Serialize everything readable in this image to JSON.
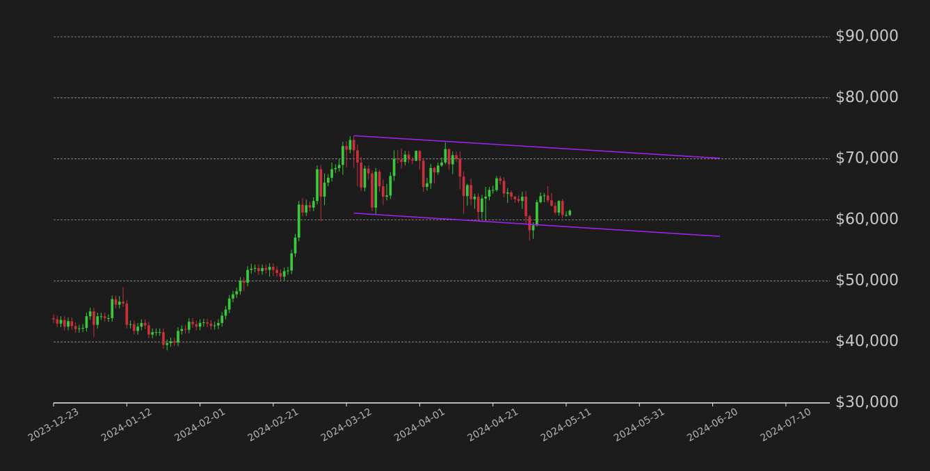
{
  "chart_data": {
    "type": "candlestick",
    "x": [
      "2023-12-23",
      "2023-12-24",
      "2023-12-25",
      "2023-12-26",
      "2023-12-27",
      "2023-12-28",
      "2023-12-29",
      "2023-12-30",
      "2023-12-31",
      "2024-01-01",
      "2024-01-02",
      "2024-01-03",
      "2024-01-04",
      "2024-01-05",
      "2024-01-06",
      "2024-01-07",
      "2024-01-08",
      "2024-01-09",
      "2024-01-10",
      "2024-01-11",
      "2024-01-12",
      "2024-01-13",
      "2024-01-14",
      "2024-01-15",
      "2024-01-16",
      "2024-01-17",
      "2024-01-18",
      "2024-01-19",
      "2024-01-20",
      "2024-01-21",
      "2024-01-22",
      "2024-01-23",
      "2024-01-24",
      "2024-01-25",
      "2024-01-26",
      "2024-01-27",
      "2024-01-28",
      "2024-01-29",
      "2024-01-30",
      "2024-01-31",
      "2024-02-01",
      "2024-02-02",
      "2024-02-03",
      "2024-02-04",
      "2024-02-05",
      "2024-02-06",
      "2024-02-07",
      "2024-02-08",
      "2024-02-09",
      "2024-02-10",
      "2024-02-11",
      "2024-02-12",
      "2024-02-13",
      "2024-02-14",
      "2024-02-15",
      "2024-02-16",
      "2024-02-17",
      "2024-02-18",
      "2024-02-19",
      "2024-02-20",
      "2024-02-21",
      "2024-02-22",
      "2024-02-23",
      "2024-02-24",
      "2024-02-25",
      "2024-02-26",
      "2024-02-27",
      "2024-02-28",
      "2024-02-29",
      "2024-03-01",
      "2024-03-02",
      "2024-03-03",
      "2024-03-04",
      "2024-03-05",
      "2024-03-06",
      "2024-03-07",
      "2024-03-08",
      "2024-03-09",
      "2024-03-10",
      "2024-03-11",
      "2024-03-12",
      "2024-03-13",
      "2024-03-14",
      "2024-03-15",
      "2024-03-16",
      "2024-03-17",
      "2024-03-18",
      "2024-03-19",
      "2024-03-20",
      "2024-03-21",
      "2024-03-22",
      "2024-03-23",
      "2024-03-24",
      "2024-03-25",
      "2024-03-26",
      "2024-03-27",
      "2024-03-28",
      "2024-03-29",
      "2024-03-30",
      "2024-03-31",
      "2024-04-01",
      "2024-04-02",
      "2024-04-03",
      "2024-04-04",
      "2024-04-05",
      "2024-04-06",
      "2024-04-07",
      "2024-04-08",
      "2024-04-09",
      "2024-04-10",
      "2024-04-11",
      "2024-04-12",
      "2024-04-13",
      "2024-04-14",
      "2024-04-15",
      "2024-04-16",
      "2024-04-17",
      "2024-04-18",
      "2024-04-19",
      "2024-04-20",
      "2024-04-21",
      "2024-04-22",
      "2024-04-23",
      "2024-04-24",
      "2024-04-25",
      "2024-04-26",
      "2024-04-27",
      "2024-04-28",
      "2024-04-29",
      "2024-04-30",
      "2024-05-01",
      "2024-05-02",
      "2024-05-03",
      "2024-05-04",
      "2024-05-05",
      "2024-05-06",
      "2024-05-07",
      "2024-05-08",
      "2024-05-09",
      "2024-05-10",
      "2024-05-11",
      "2024-05-12"
    ],
    "open": [
      43900,
      43700,
      43000,
      43600,
      42500,
      43400,
      42600,
      42100,
      42200,
      42300,
      44200,
      45000,
      42800,
      44200,
      44200,
      43900,
      43900,
      47000,
      46100,
      46600,
      46300,
      42800,
      42900,
      41800,
      42500,
      43100,
      42700,
      41200,
      41600,
      41600,
      41600,
      39500,
      39800,
      40100,
      39900,
      41800,
      42100,
      42000,
      43300,
      42900,
      42500,
      43100,
      43200,
      43000,
      42600,
      42700,
      43100,
      44300,
      45300,
      47100,
      47800,
      48300,
      50000,
      49700,
      51800,
      52000,
      52100,
      51600,
      52100,
      51800,
      52300,
      51800,
      51300,
      50700,
      51600,
      51700,
      54500,
      57100,
      62500,
      61200,
      62400,
      62000,
      63100,
      68300,
      63800,
      66100,
      66900,
      68300,
      68500,
      69000,
      72100,
      71500,
      73100,
      71400,
      69400,
      65300,
      68400,
      67600,
      62000,
      67900,
      65500,
      63800,
      64000,
      67200,
      70000,
      69900,
      69500,
      70700,
      69900,
      69700,
      71300,
      69700,
      65400,
      66000,
      68500,
      67800,
      68900,
      69400,
      71600,
      69100,
      70600,
      70000,
      67100,
      63900,
      65700,
      63400,
      63800,
      61300,
      63500,
      63800,
      64900,
      64900,
      66800,
      66400,
      64300,
      64500,
      63800,
      63400,
      63100,
      63800,
      60600,
      58300,
      59100,
      62900,
      63900,
      64000,
      63200,
      62300,
      61200,
      63100,
      60800,
      60800
    ],
    "high": [
      44500,
      44300,
      44200,
      44200,
      44000,
      44000,
      43200,
      42800,
      42900,
      44800,
      45600,
      45600,
      44800,
      44800,
      44800,
      44500,
      47600,
      47600,
      47500,
      49000,
      46900,
      43500,
      43500,
      43100,
      43700,
      43700,
      43300,
      42200,
      42200,
      42200,
      42200,
      40400,
      40700,
      40700,
      42400,
      42700,
      42700,
      43900,
      43900,
      43500,
      43700,
      43800,
      43800,
      43600,
      43300,
      43700,
      44900,
      45900,
      47700,
      48400,
      48900,
      50600,
      50600,
      52400,
      52800,
      52700,
      52700,
      52700,
      52700,
      52900,
      52900,
      52400,
      51900,
      52200,
      52300,
      55100,
      57700,
      63100,
      63600,
      63300,
      63000,
      63700,
      68900,
      69000,
      67600,
      67500,
      69400,
      69100,
      70000,
      72800,
      72900,
      73700,
      73800,
      72400,
      70300,
      68900,
      68900,
      68100,
      68500,
      68200,
      66600,
      65900,
      67800,
      71400,
      71400,
      71700,
      71300,
      71300,
      70300,
      71400,
      71400,
      70000,
      66900,
      69200,
      68700,
      69400,
      70200,
      72700,
      71700,
      71200,
      71200,
      71200,
      67900,
      65900,
      66800,
      64300,
      64400,
      64100,
      65400,
      65400,
      65600,
      67200,
      67200,
      67000,
      65200,
      64800,
      63900,
      64000,
      64600,
      64700,
      60800,
      59600,
      63300,
      64500,
      64400,
      65500,
      64400,
      62900,
      63200,
      63400,
      61400,
      61700
    ],
    "low": [
      43100,
      42400,
      42400,
      41900,
      41900,
      42000,
      41500,
      41500,
      41600,
      41700,
      43600,
      40800,
      42200,
      43600,
      43300,
      43300,
      43300,
      45500,
      45500,
      45700,
      42200,
      42200,
      41200,
      41200,
      41900,
      42100,
      40600,
      40600,
      41000,
      41000,
      38900,
      38600,
      39200,
      39300,
      39300,
      41200,
      41400,
      41400,
      42300,
      41900,
      41900,
      42500,
      42400,
      42000,
      42000,
      42100,
      42500,
      43700,
      44700,
      46500,
      47200,
      47700,
      48300,
      49100,
      51200,
      51400,
      51000,
      51000,
      51200,
      50700,
      50800,
      50700,
      50100,
      50100,
      51000,
      51100,
      53900,
      56500,
      60600,
      60600,
      61400,
      61400,
      62500,
      59800,
      62400,
      65500,
      66300,
      67700,
      67900,
      67400,
      68600,
      70900,
      68500,
      65500,
      64700,
      64700,
      66600,
      61400,
      60800,
      64600,
      62400,
      63200,
      63400,
      66400,
      69300,
      68400,
      68900,
      69300,
      69100,
      69600,
      68200,
      64600,
      64800,
      65100,
      66000,
      67400,
      68700,
      69100,
      68200,
      67500,
      69500,
      65000,
      61000,
      62300,
      62400,
      61800,
      59900,
      60200,
      59700,
      63200,
      64300,
      64600,
      65800,
      63700,
      62800,
      63300,
      62800,
      62800,
      61800,
      59200,
      56600,
      56900,
      58900,
      62700,
      62900,
      62800,
      62200,
      60900,
      60700,
      60300,
      60500,
      60600
    ],
    "close": [
      43700,
      43000,
      43600,
      42500,
      43400,
      42600,
      42100,
      42200,
      42300,
      44200,
      45000,
      42800,
      44200,
      44200,
      43900,
      43900,
      47000,
      46100,
      46600,
      46300,
      42800,
      42900,
      41800,
      42500,
      43100,
      42700,
      41200,
      41600,
      41600,
      41600,
      39500,
      39800,
      40100,
      39900,
      41800,
      42100,
      42000,
      43300,
      42900,
      42500,
      43100,
      43200,
      43000,
      42600,
      42700,
      43100,
      44300,
      45300,
      47100,
      47800,
      48300,
      50000,
      49700,
      51800,
      52000,
      52100,
      51600,
      52100,
      51800,
      52300,
      51800,
      51300,
      50700,
      51600,
      51700,
      54500,
      57100,
      62500,
      61200,
      62400,
      62000,
      63100,
      68300,
      63800,
      66100,
      66900,
      68300,
      68500,
      69000,
      72100,
      71500,
      73100,
      71400,
      69400,
      65300,
      68400,
      67600,
      62000,
      67900,
      65500,
      63800,
      64000,
      67200,
      70000,
      69900,
      69500,
      70700,
      69900,
      69700,
      71300,
      69700,
      65400,
      66000,
      68500,
      67800,
      68900,
      69400,
      71600,
      69100,
      70600,
      70000,
      67100,
      63900,
      65700,
      63400,
      63800,
      61300,
      63500,
      63800,
      64900,
      64900,
      66800,
      66400,
      64300,
      64500,
      63800,
      63400,
      63100,
      63800,
      60600,
      58300,
      59100,
      62900,
      63900,
      64000,
      63200,
      62300,
      61200,
      63100,
      60800,
      60800,
      61500
    ],
    "up_color": "#3cc83c",
    "down_color": "#c8303c",
    "xlim": [
      "2023-12-23",
      "2024-07-22"
    ],
    "xticks": [
      "2023-12-23",
      "2024-01-12",
      "2024-02-01",
      "2024-02-21",
      "2024-03-12",
      "2024-04-01",
      "2024-04-21",
      "2024-05-11",
      "2024-05-31",
      "2024-06-20",
      "2024-07-10"
    ],
    "ylim": [
      30000,
      90000
    ],
    "yticks": [
      {
        "value": 30000,
        "label": "$30,000"
      },
      {
        "value": 40000,
        "label": "$40,000"
      },
      {
        "value": 50000,
        "label": "$50,000"
      },
      {
        "value": 60000,
        "label": "$60,000"
      },
      {
        "value": 70000,
        "label": "$70,000"
      },
      {
        "value": 80000,
        "label": "$80,000"
      },
      {
        "value": 90000,
        "label": "$90,000"
      }
    ],
    "grid": true,
    "trendlines": [
      {
        "x": [
          "2024-03-14",
          "2024-06-22"
        ],
        "values": [
          73800,
          70100
        ],
        "color": "#a020f0"
      },
      {
        "x": [
          "2024-03-14",
          "2024-06-22"
        ],
        "values": [
          61100,
          57300
        ],
        "color": "#a020f0"
      }
    ]
  }
}
